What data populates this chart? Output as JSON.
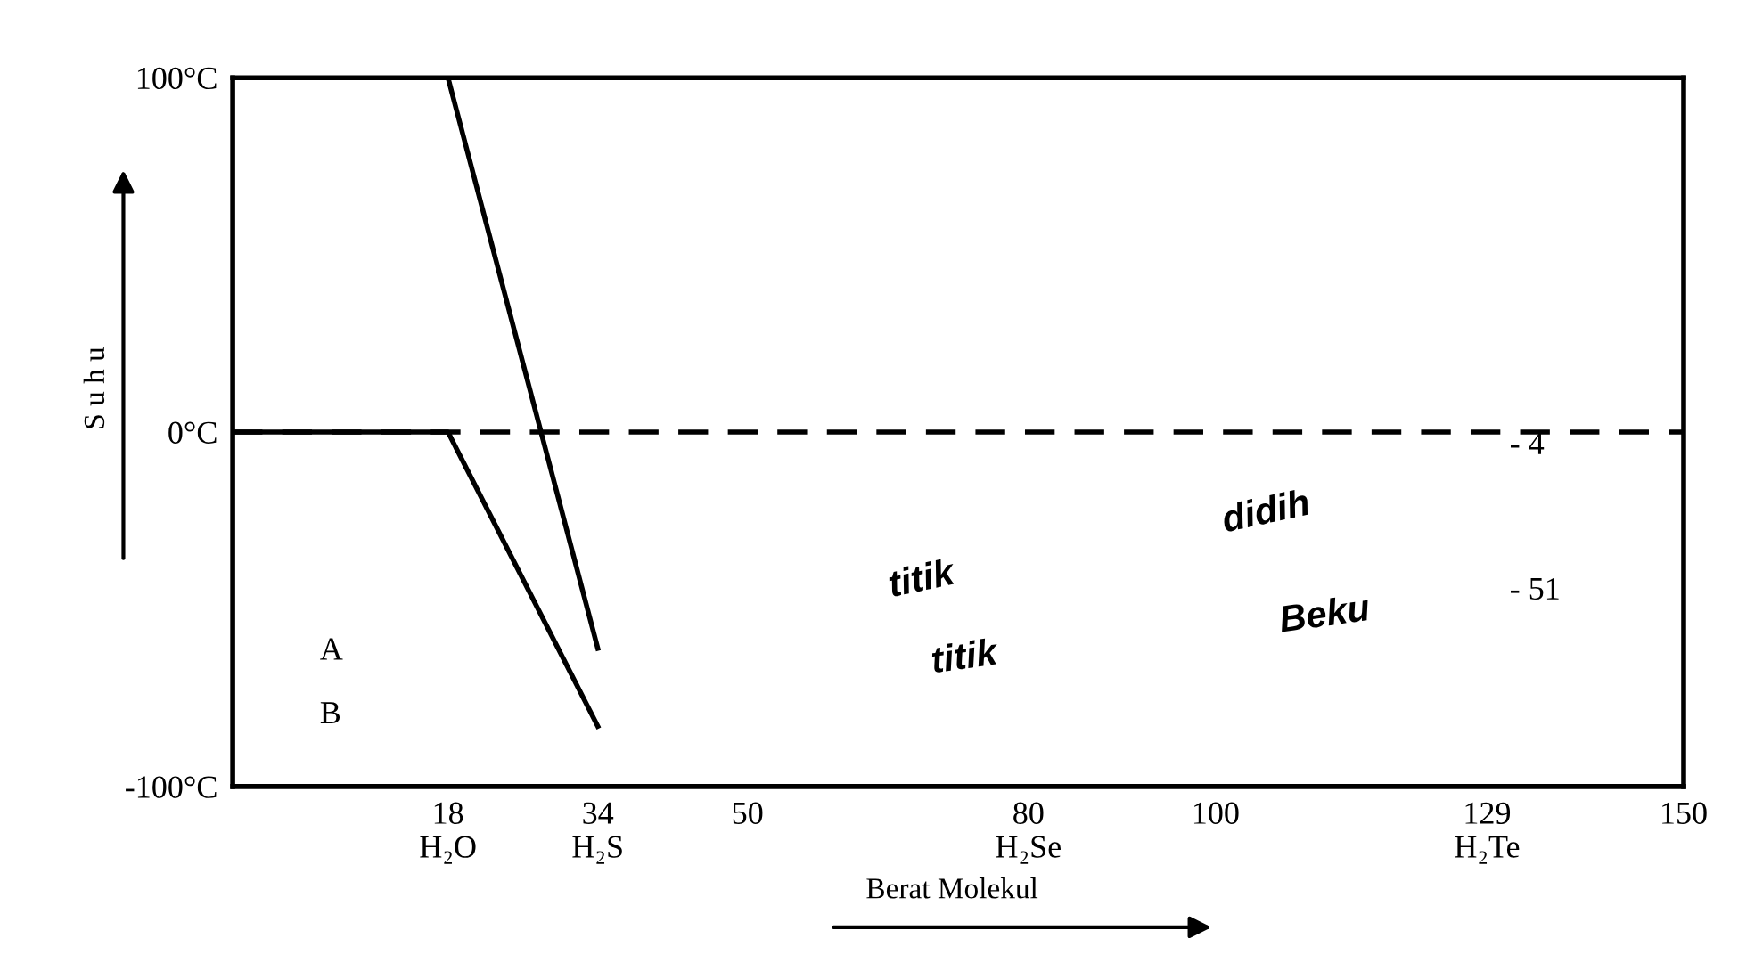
{
  "chart_data": {
    "type": "line",
    "xlabel": "Berat Molekul",
    "ylabel": "S u h u",
    "series": [
      {
        "color": "#000000",
        "x": [
          18,
          34
        ],
        "values": [
          100,
          -61
        ]
      },
      {
        "color": "#000000",
        "x": [
          -5,
          18,
          34
        ],
        "values": [
          0,
          0,
          -83
        ]
      }
    ],
    "xlim": [
      -5,
      150
    ],
    "ylim": [
      -100,
      100
    ],
    "xticks": [
      {
        "value": 18,
        "label": "18\nH₂O"
      },
      {
        "value": 34,
        "label": "34\nH₂S"
      },
      50,
      {
        "value": 80,
        "label": "80\nH₂Se"
      },
      100,
      {
        "value": 129,
        "label": "129\nH₂Te"
      },
      150
    ],
    "yticks": [
      {
        "value": -100,
        "label": "-100°C"
      },
      {
        "value": 0,
        "label": "0°C"
      },
      {
        "value": 100,
        "label": "100°C"
      }
    ],
    "ref_lines": [
      {
        "axis": "y",
        "value": 0,
        "line_style": "dashed",
        "color": "#000000"
      }
    ],
    "annotations": [
      "A",
      "B",
      "titik",
      "didih",
      "titik",
      "Beku",
      "- 4",
      "- 51"
    ],
    "grid": false,
    "legend": false,
    "marker": "none",
    "line_style": "solid"
  }
}
